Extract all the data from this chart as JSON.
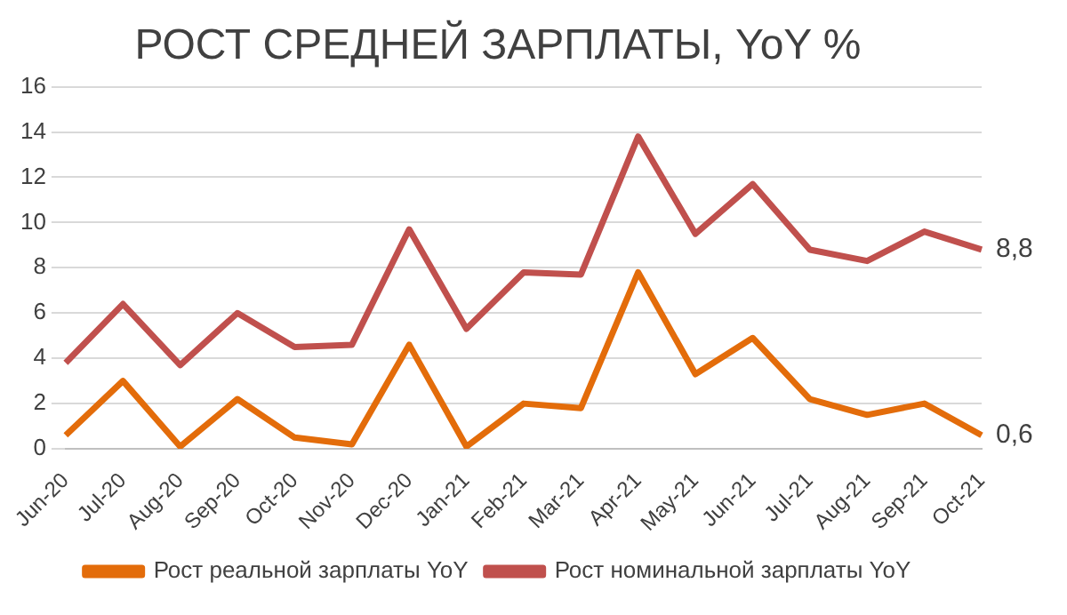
{
  "chart_data": {
    "type": "line",
    "title": "РОСТ СРЕДНЕЙ ЗАРПЛАТЫ, YoY %",
    "categories": [
      "Jun-20",
      "Jul-20",
      "Aug-20",
      "Sep-20",
      "Oct-20",
      "Nov-20",
      "Dec-20",
      "Jan-21",
      "Feb-21",
      "Mar-21",
      "Apr-21",
      "May-21",
      "Jun-21",
      "Jul-21",
      "Aug-21",
      "Sep-21",
      "Oct-21"
    ],
    "series": [
      {
        "name": "Рост реальной зарплаты YoY",
        "color": "#e36c0a",
        "values": [
          0.6,
          3.0,
          0.1,
          2.2,
          0.5,
          0.2,
          4.6,
          0.1,
          2.0,
          1.8,
          7.8,
          3.3,
          4.9,
          2.2,
          1.5,
          2.0,
          0.6
        ],
        "value_labels": [
          null,
          null,
          null,
          null,
          null,
          null,
          null,
          null,
          null,
          null,
          null,
          null,
          null,
          null,
          null,
          null,
          "0,6"
        ]
      },
      {
        "name": "Рост номинальной зарплаты YoY",
        "color": "#c0504d",
        "values": [
          3.8,
          6.4,
          3.7,
          6.0,
          4.5,
          4.6,
          9.7,
          5.3,
          7.8,
          7.7,
          13.8,
          9.5,
          11.7,
          8.8,
          8.3,
          9.6,
          8.8
        ],
        "value_labels": [
          null,
          null,
          null,
          null,
          null,
          null,
          null,
          null,
          null,
          null,
          null,
          null,
          null,
          null,
          null,
          null,
          "8,8"
        ]
      }
    ],
    "ylim": [
      0,
      16
    ],
    "yticks": [
      0,
      2,
      4,
      6,
      8,
      10,
      12,
      14,
      16
    ],
    "grid": "y",
    "legend": "bottom",
    "marker": "none",
    "line_style": "solid"
  }
}
